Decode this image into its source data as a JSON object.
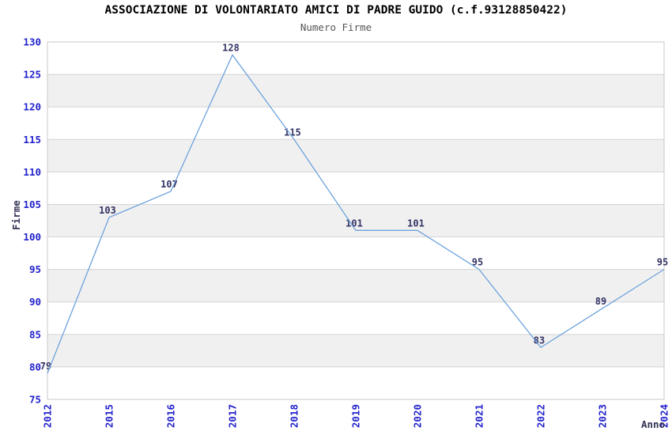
{
  "chart_data": {
    "type": "line",
    "title": "ASSOCIAZIONE DI VOLONTARIATO AMICI DI PADRE GUIDO (c.f.93128850422)",
    "subtitle": "Numero Firme",
    "xlabel": "Anno",
    "ylabel": "Firme",
    "categories": [
      "2012",
      "2015",
      "2016",
      "2017",
      "2018",
      "2019",
      "2020",
      "2021",
      "2022",
      "2023",
      "2024"
    ],
    "values": [
      79,
      103,
      107,
      128,
      115,
      101,
      101,
      95,
      83,
      89,
      95
    ],
    "ylim": [
      75,
      130
    ],
    "ytick_step": 5,
    "grid": "horizontal",
    "banding": "alternating horizontal stripes",
    "legend": "none",
    "colors": {
      "title": "#000000",
      "subtitle": "#555555",
      "line": "#6FA3DC",
      "tick_label": "#2222CC",
      "data_label": "#333366",
      "axis_title": "#333355",
      "band": "#F0F0F0",
      "grid": "#D4D4D4",
      "border": "#C8C8C8",
      "background": "#FFFFFF"
    }
  }
}
